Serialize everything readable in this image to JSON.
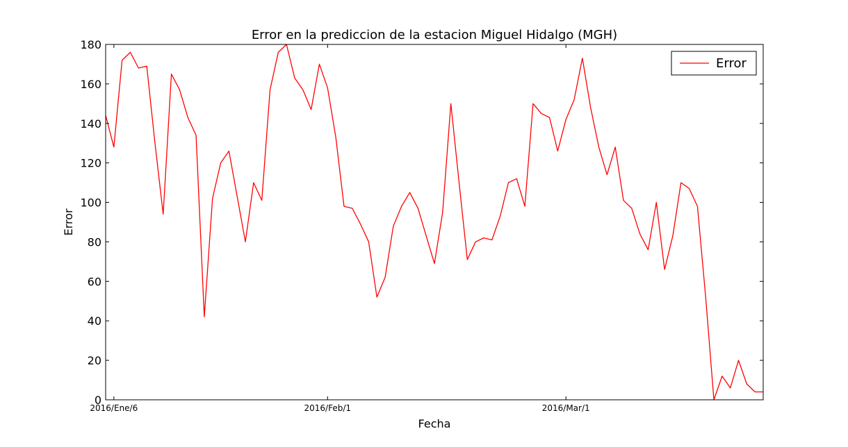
{
  "chart_data": {
    "type": "line",
    "title": "Error en la prediccion de la estacion Miguel Hidalgo (MGH)",
    "xlabel": "Fecha",
    "ylabel": "Error",
    "ylim": [
      0,
      180
    ],
    "yticks": [
      0,
      20,
      40,
      60,
      80,
      100,
      120,
      140,
      160,
      180
    ],
    "xlim": [
      "2016-01-05",
      "2016-03-25"
    ],
    "xticks": [
      {
        "date": "2016-01-06",
        "label": "2016/Ene/6"
      },
      {
        "date": "2016-02-01",
        "label": "2016/Feb/1"
      },
      {
        "date": "2016-03-01",
        "label": "2016/Mar/1"
      }
    ],
    "grid": false,
    "legend": {
      "position": "top-right",
      "entries": [
        "Error"
      ]
    },
    "series": [
      {
        "name": "Error",
        "color": "#ff0000",
        "x": [
          "2016-01-05",
          "2016-01-06",
          "2016-01-07",
          "2016-01-08",
          "2016-01-09",
          "2016-01-10",
          "2016-01-11",
          "2016-01-12",
          "2016-01-13",
          "2016-01-14",
          "2016-01-15",
          "2016-01-16",
          "2016-01-17",
          "2016-01-18",
          "2016-01-19",
          "2016-01-20",
          "2016-01-21",
          "2016-01-22",
          "2016-01-23",
          "2016-01-24",
          "2016-01-25",
          "2016-01-26",
          "2016-01-27",
          "2016-01-28",
          "2016-01-29",
          "2016-01-30",
          "2016-01-31",
          "2016-02-01",
          "2016-02-02",
          "2016-02-03",
          "2016-02-04",
          "2016-02-05",
          "2016-02-06",
          "2016-02-07",
          "2016-02-08",
          "2016-02-09",
          "2016-02-10",
          "2016-02-11",
          "2016-02-12",
          "2016-02-13",
          "2016-02-14",
          "2016-02-15",
          "2016-02-16",
          "2016-02-17",
          "2016-02-18",
          "2016-02-19",
          "2016-02-20",
          "2016-02-21",
          "2016-02-22",
          "2016-02-23",
          "2016-02-24",
          "2016-02-25",
          "2016-02-26",
          "2016-02-27",
          "2016-02-28",
          "2016-02-29",
          "2016-03-01",
          "2016-03-02",
          "2016-03-03",
          "2016-03-04",
          "2016-03-05",
          "2016-03-06",
          "2016-03-07",
          "2016-03-08",
          "2016-03-09",
          "2016-03-10",
          "2016-03-11",
          "2016-03-12",
          "2016-03-13",
          "2016-03-14",
          "2016-03-15",
          "2016-03-16",
          "2016-03-17",
          "2016-03-18",
          "2016-03-19",
          "2016-03-20",
          "2016-03-21",
          "2016-03-22",
          "2016-03-23",
          "2016-03-24",
          "2016-03-25"
        ],
        "values": [
          144,
          128,
          172,
          176,
          168,
          169,
          130,
          94,
          165,
          157,
          143,
          134,
          42,
          102,
          120,
          126,
          103,
          80,
          110,
          101,
          157,
          176,
          180,
          163,
          157,
          147,
          170,
          158,
          133,
          98,
          97,
          89,
          80,
          52,
          62,
          88,
          98,
          105,
          97,
          83,
          69,
          95,
          150,
          110,
          71,
          80,
          82,
          81,
          93,
          110,
          112,
          98,
          150,
          145,
          143,
          126,
          142,
          152,
          173,
          148,
          128,
          114,
          128,
          101,
          97,
          84,
          76,
          100,
          66,
          83,
          110,
          107,
          98,
          52,
          0,
          12,
          6,
          20,
          8,
          4,
          4
        ]
      }
    ]
  }
}
